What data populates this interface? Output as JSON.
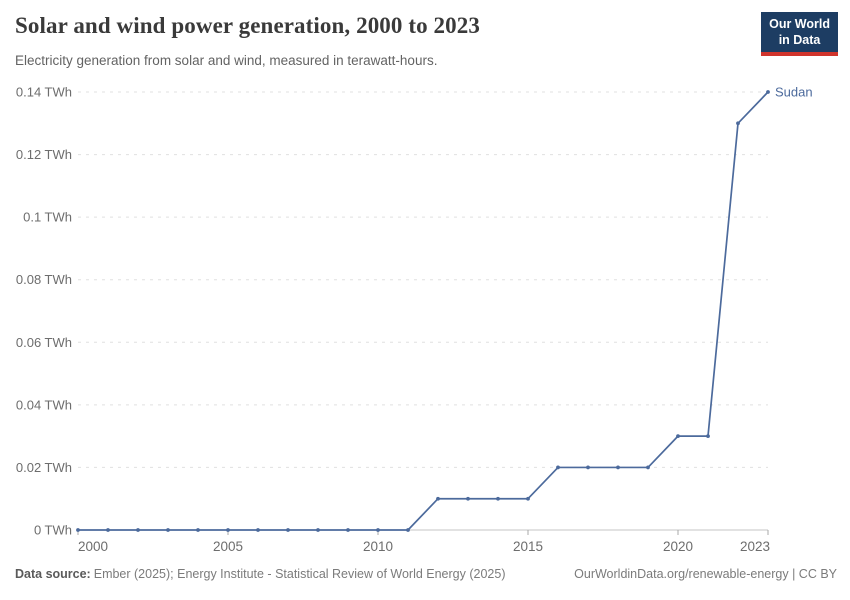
{
  "header": {
    "title": "Solar and wind power generation, 2000 to 2023",
    "subtitle": "Electricity generation from solar and wind, measured in terawatt-hours.",
    "logo": {
      "line1": "Our World",
      "line2": "in Data"
    }
  },
  "chart_data": {
    "type": "line",
    "title": "Solar and wind power generation, 2000 to 2023",
    "xlabel": "",
    "ylabel": "",
    "unit": "TWh",
    "x": [
      2000,
      2001,
      2002,
      2003,
      2004,
      2005,
      2006,
      2007,
      2008,
      2009,
      2010,
      2011,
      2012,
      2013,
      2014,
      2015,
      2016,
      2017,
      2018,
      2019,
      2020,
      2021,
      2022,
      2023
    ],
    "series": [
      {
        "name": "Sudan",
        "color": "#4C6A9C",
        "values": [
          0,
          0,
          0,
          0,
          0,
          0,
          0,
          0,
          0,
          0,
          0,
          0,
          0.01,
          0.01,
          0.01,
          0.01,
          0.02,
          0.02,
          0.02,
          0.02,
          0.03,
          0.03,
          0.13,
          0.14
        ]
      }
    ],
    "xlim": [
      2000,
      2023
    ],
    "ylim": [
      0,
      0.14
    ],
    "xticks": [
      2000,
      2005,
      2010,
      2015,
      2020,
      2023
    ],
    "yticks": [
      {
        "value": 0,
        "label": "0 TWh"
      },
      {
        "value": 0.02,
        "label": "0.02 TWh"
      },
      {
        "value": 0.04,
        "label": "0.04 TWh"
      },
      {
        "value": 0.06,
        "label": "0.06 TWh"
      },
      {
        "value": 0.08,
        "label": "0.08 TWh"
      },
      {
        "value": 0.1,
        "label": "0.1 TWh"
      },
      {
        "value": 0.12,
        "label": "0.12 TWh"
      },
      {
        "value": 0.14,
        "label": "0.14 TWh"
      }
    ],
    "grid": "horizontal dashed",
    "legend_position": "series end label"
  },
  "colors": {
    "line": "#4C6A9C",
    "gridline": "#e0e0e0",
    "axis": "#c4c4c4",
    "tick_text": "#6d6d6d",
    "logo_bg": "#1d3d63",
    "logo_accent": "#d0342c"
  },
  "footer": {
    "source_label": "Data source:",
    "source_text": "Ember (2025); Energy Institute - Statistical Review of World Energy (2025)",
    "link_text": "OurWorldinData.org/renewable-energy | CC BY"
  }
}
